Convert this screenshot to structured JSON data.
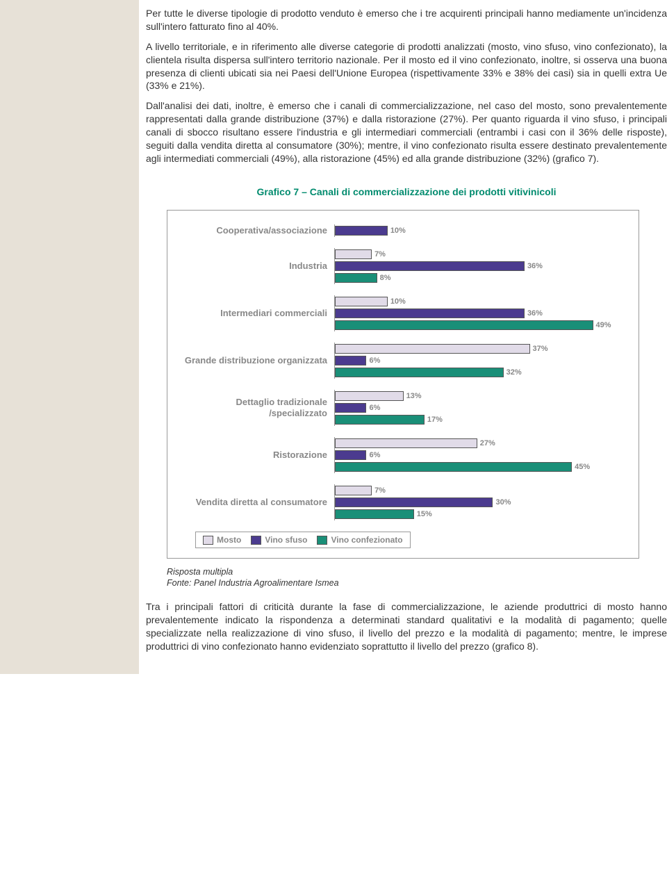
{
  "text": {
    "p1": "Per tutte le diverse tipologie di prodotto venduto è emerso che i tre acquirenti principali hanno mediamente un'incidenza sull'intero fatturato fino al 40%.",
    "p2": "A livello territoriale, e in riferimento alle diverse categorie di prodotti analizzati (mosto, vino sfuso, vino confezionato), la clientela risulta dispersa sull'intero territorio nazionale. Per il mosto ed il vino confezionato, inoltre, si osserva una buona presenza di clienti ubicati sia nei Paesi dell'Unione Europea (rispettivamente 33% e 38% dei casi) sia in quelli extra Ue (33% e 21%).",
    "p3": "Dall'analisi dei dati, inoltre, è emerso che i canali di commercializzazione, nel caso del mosto, sono prevalentemente rappresentati dalla grande distribuzione (37%) e dalla ristorazione (27%). Per quanto riguarda il vino sfuso, i principali canali di sbocco risultano essere l'industria e gli intermediari commerciali (entrambi i casi con il 36% delle risposte), seguiti dalla vendita diretta al consumatore (30%); mentre, il vino confezionato risulta essere destinato prevalentemente agli intermediati commerciali (49%), alla ristorazione (45%) ed alla grande distribuzione (32%) (grafico 7).",
    "p4": "Tra i principali fattori di criticità durante la fase di commercializzazione, le aziende produttrici di mosto hanno prevalentemente indicato la rispondenza a determinati standard qualitativi e la modalità di pagamento; quelle specializzate nella realizzazione di vino sfuso, il livello del prezzo e la modalità di pagamento; mentre, le imprese produttrici di vino confezionato hanno evidenziato soprattutto il livello del prezzo (grafico 8).",
    "caption1": "Risposta multipla",
    "caption2": "Fonte: Panel Industria Agroalimentare Ismea"
  },
  "chart": {
    "title": "Grafico 7 – Canali di commercializzazione dei prodotti vitivinicoli",
    "type": "bar",
    "scale_max": 55,
    "series": [
      {
        "name": "Mosto",
        "color": "#e1dbe8"
      },
      {
        "name": "Vino sfuso",
        "color": "#4b3b8f"
      },
      {
        "name": "Vino confezionato",
        "color": "#1a8f78"
      }
    ],
    "categories": [
      {
        "label": "Cooperativa/associazione",
        "values": [
          null,
          10,
          null
        ]
      },
      {
        "label": "Industria",
        "values": [
          7,
          36,
          8
        ]
      },
      {
        "label": "Intermediari commerciali",
        "values": [
          10,
          36,
          49
        ]
      },
      {
        "label": "Grande distribuzione organizzata",
        "values": [
          37,
          6,
          32
        ]
      },
      {
        "label": "Dettaglio tradizionale /specializzato",
        "values": [
          13,
          6,
          17
        ]
      },
      {
        "label": "Ristorazione",
        "values": [
          27,
          6,
          45
        ]
      },
      {
        "label": "Vendita diretta al consumatore",
        "values": [
          7,
          30,
          15
        ]
      }
    ]
  }
}
